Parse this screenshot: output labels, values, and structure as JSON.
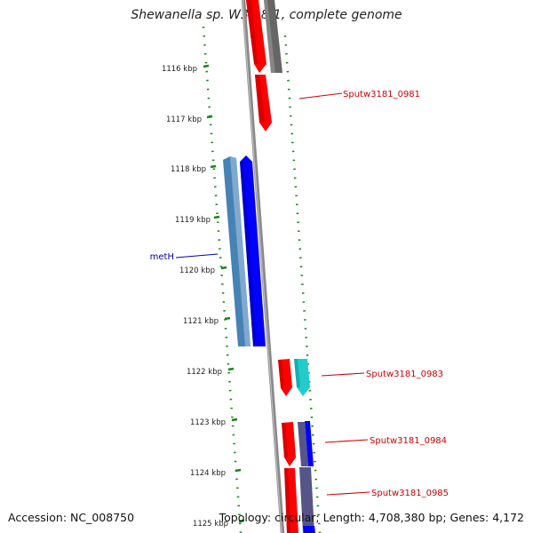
{
  "title": "Shewanella sp. W3-18-1, complete genome",
  "footer": {
    "accession": "Accession: NC_008750",
    "summary": "Topology: circular; Length: 4,708,380 bp; Genes: 4,172"
  },
  "ruler": {
    "ticks": [
      "1116 kbp",
      "1117 kbp",
      "1118 kbp",
      "1119 kbp",
      "1120 kbp",
      "1121 kbp",
      "1122 kbp",
      "1123 kbp",
      "1124 kbp",
      "1125 kbp"
    ]
  },
  "gene_labels": [
    {
      "id": "sputw3181-0981",
      "text": "Sputw3181_0981",
      "color": "#cc0000"
    },
    {
      "id": "meth",
      "text": "metH",
      "color": "#0000aa"
    },
    {
      "id": "sputw3181-0983",
      "text": "Sputw3181_0983",
      "color": "#cc0000"
    },
    {
      "id": "sputw3181-0984",
      "text": "Sputw3181_0984",
      "color": "#cc0000"
    },
    {
      "id": "sputw3181-0985",
      "text": "Sputw3181_0985",
      "color": "#cc0000"
    }
  ],
  "colors": {
    "backbone": "#888888",
    "ruler_ticks": "#118811",
    "gene_red": "#ff0000",
    "gene_blue": "#0000ff",
    "gene_steelblue": "#4682b4",
    "gene_cyan": "#22cccc",
    "gene_gray": "#666666",
    "gene_slate": "#555588"
  }
}
